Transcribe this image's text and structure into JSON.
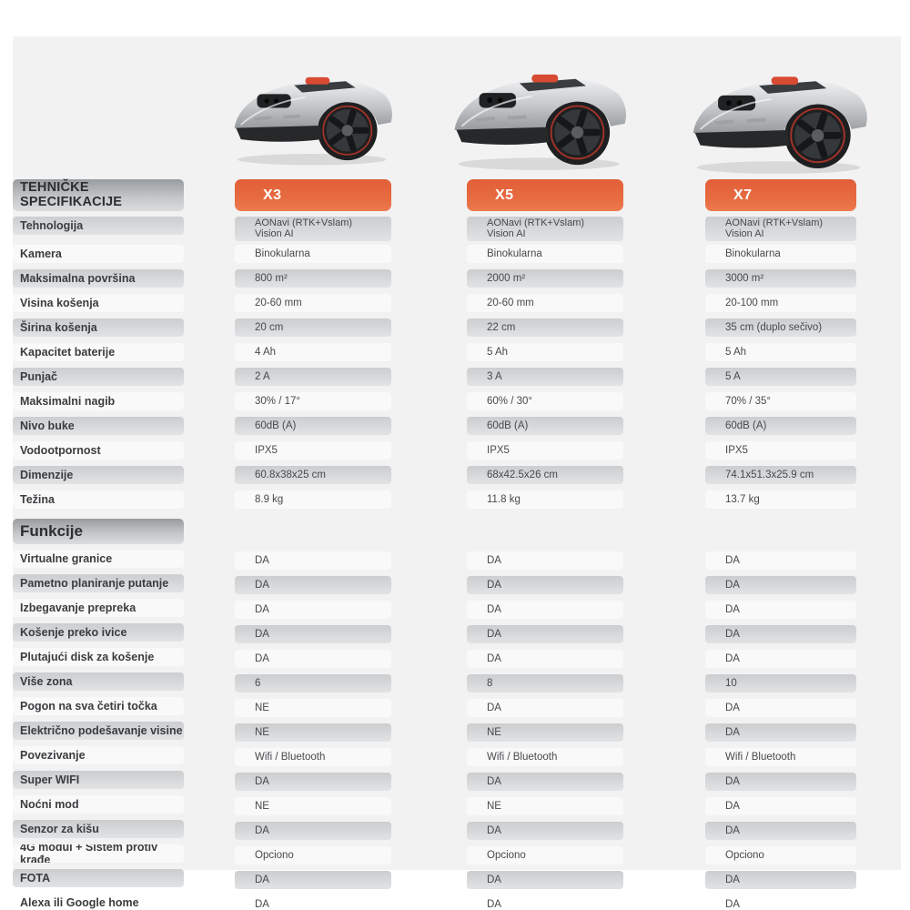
{
  "panel": {
    "background": "#f2f2f3"
  },
  "colors": {
    "accent_orange": "#e4683c",
    "pill_gray": "#d4d7d9",
    "header_gray": "#a9abad",
    "label_text": "#3a3c3e",
    "value_text": "#47494b",
    "mower_red": "#d84a32"
  },
  "section_headers": {
    "specs": "TEHNIČKE SPECIFIKACIJE",
    "functions": "Funkcije"
  },
  "products": [
    {
      "name": "X3"
    },
    {
      "name": "X5"
    },
    {
      "name": "X7"
    }
  ],
  "spec_rows": [
    {
      "label": "Tehnologija",
      "two_line": true,
      "values": [
        "AONavi (RTK+Vslam)\nVision AI",
        "AONavi (RTK+Vslam)\nVision AI",
        "AONavi (RTK+Vslam)\nVision AI"
      ]
    },
    {
      "label": "Kamera",
      "values": [
        "Binokularna",
        "Binokularna",
        "Binokularna"
      ]
    },
    {
      "label": "Maksimalna površina",
      "values": [
        "800 m²",
        "2000 m²",
        "3000 m²"
      ]
    },
    {
      "label": "Visina košenja",
      "values": [
        "20-60 mm",
        "20-60 mm",
        "20-100 mm"
      ]
    },
    {
      "label": "Širina košenja",
      "values": [
        "20 cm",
        "22 cm",
        "35 cm (duplo sečivo)"
      ]
    },
    {
      "label": "Kapacitet baterije",
      "values": [
        "4 Ah",
        "5 Ah",
        "5 Ah"
      ]
    },
    {
      "label": "Punjač",
      "values": [
        "2 A",
        "3 A",
        "5 A"
      ]
    },
    {
      "label": "Maksimalni nagib",
      "values": [
        "30% / 17°",
        "60% / 30°",
        "70% / 35°"
      ]
    },
    {
      "label": "Nivo buke",
      "values": [
        "60dB (A)",
        "60dB (A)",
        "60dB (A)"
      ]
    },
    {
      "label": "Vodootpornost",
      "values": [
        "IPX5",
        "IPX5",
        "IPX5"
      ]
    },
    {
      "label": "Dimenzije",
      "values": [
        "60.8x38x25 cm",
        "68x42.5x26 cm",
        "74.1x51.3x25.9 cm"
      ]
    },
    {
      "label": "Težina",
      "values": [
        "8.9 kg",
        "11.8 kg",
        "13.7 kg"
      ]
    }
  ],
  "function_rows": [
    {
      "label": "Virtualne granice",
      "values": [
        "DA",
        "DA",
        "DA"
      ]
    },
    {
      "label": "Pametno planiranje putanje",
      "values": [
        "DA",
        "DA",
        "DA"
      ]
    },
    {
      "label": "Izbegavanje prepreka",
      "values": [
        "DA",
        "DA",
        "DA"
      ]
    },
    {
      "label": "Košenje preko ivice",
      "values": [
        "DA",
        "DA",
        "DA"
      ]
    },
    {
      "label": "Plutajući disk za košenje",
      "values": [
        "DA",
        "DA",
        "DA"
      ]
    },
    {
      "label": "Više zona",
      "values": [
        "6",
        "8",
        "10"
      ]
    },
    {
      "label": "Pogon na sva četiri točka",
      "values": [
        "NE",
        "DA",
        "DA"
      ]
    },
    {
      "label": "Električno podešavanje visine",
      "values": [
        "NE",
        "NE",
        "DA"
      ]
    },
    {
      "label": "Povezivanje",
      "values": [
        "Wifi / Bluetooth",
        "Wifi / Bluetooth",
        "Wifi / Bluetooth"
      ]
    },
    {
      "label": "Super WIFI",
      "values": [
        "DA",
        "DA",
        "DA"
      ]
    },
    {
      "label": "Noćni mod",
      "values": [
        "NE",
        "NE",
        "DA"
      ]
    },
    {
      "label": "Senzor za kišu",
      "values": [
        "DA",
        "DA",
        "DA"
      ]
    },
    {
      "label": "4G modul + Sistem protiv krađe",
      "values": [
        "Opciono",
        "Opciono",
        "Opciono"
      ]
    },
    {
      "label": "FOTA",
      "values": [
        "DA",
        "DA",
        "DA"
      ]
    },
    {
      "label": "Alexa ili Google home",
      "values": [
        "DA",
        "DA",
        "DA"
      ]
    }
  ]
}
